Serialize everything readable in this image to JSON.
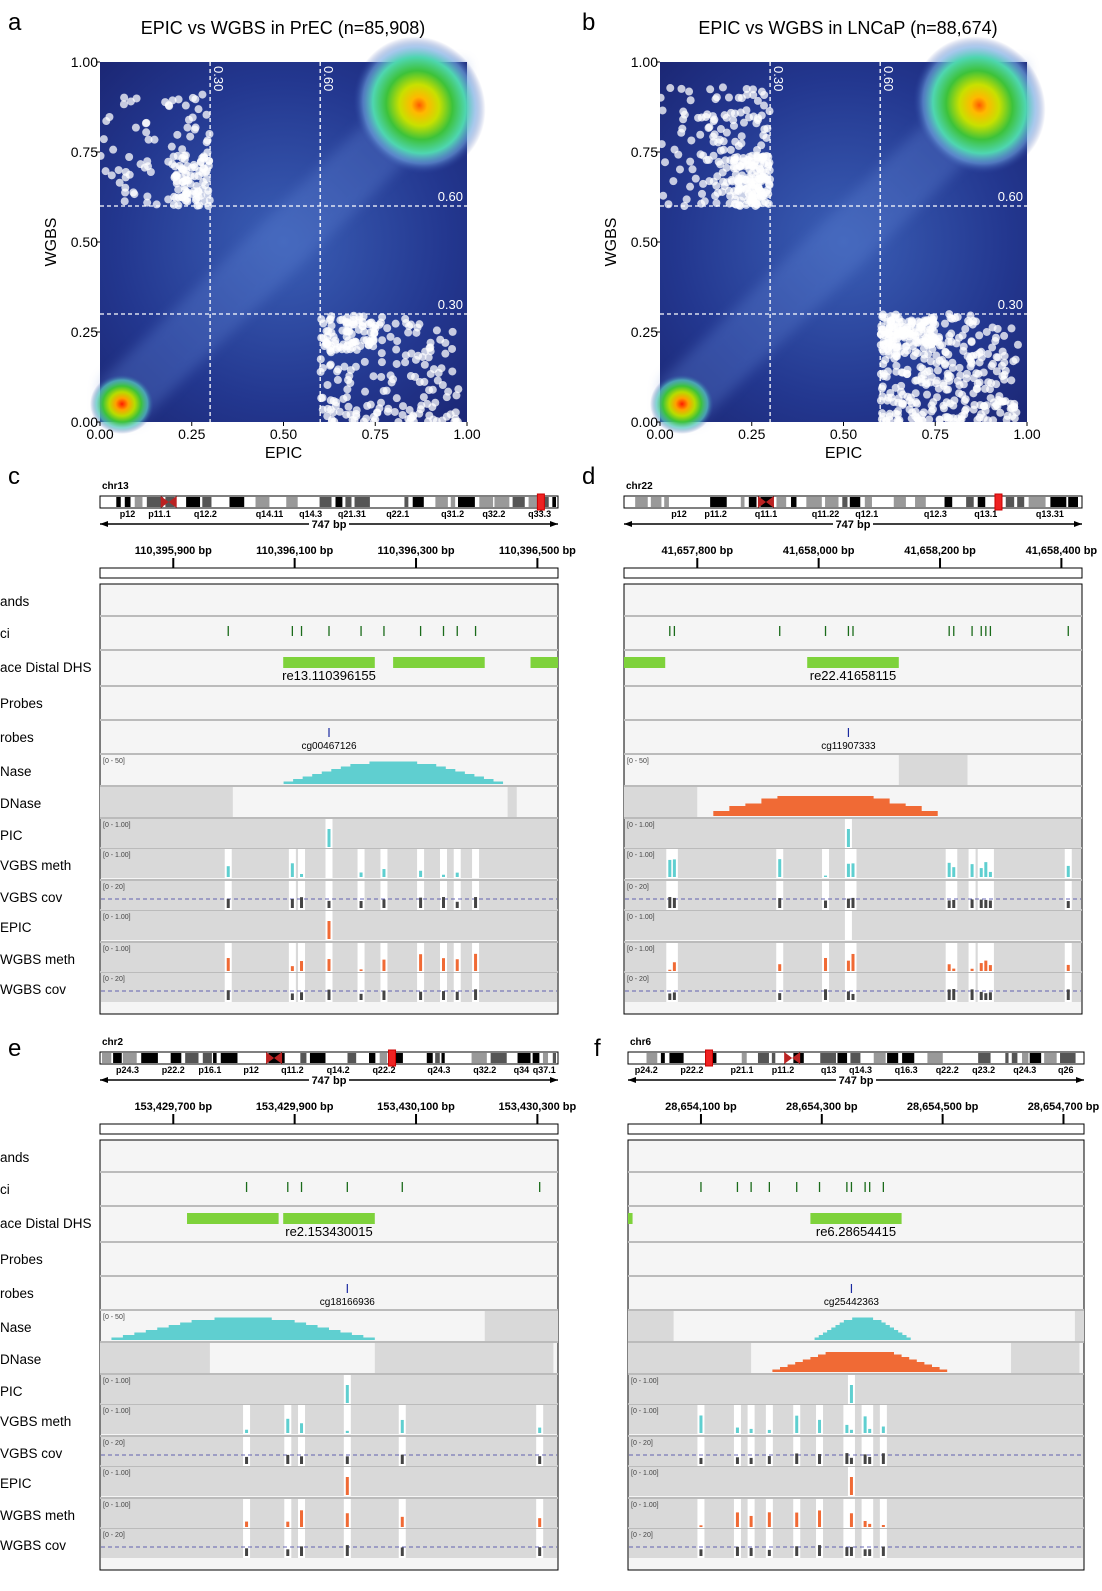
{
  "scatter_panels": [
    {
      "label": "a",
      "title": "EPIC vs WGBS in PrEC (n=85,908)",
      "xlabel": "EPIC",
      "ylabel": "WGBS",
      "xticks": [
        "0.00",
        "0.25",
        "0.50",
        "0.75",
        "1.00"
      ],
      "yticks": [
        "0.00",
        "0.25",
        "0.50",
        "0.75",
        "1.00"
      ],
      "thresholds": [
        "0.30",
        "0.60"
      ]
    },
    {
      "label": "b",
      "title": "EPIC vs WGBS in LNCaP (n=88,674)",
      "xlabel": "EPIC",
      "ylabel": "WGBS",
      "xticks": [
        "0.00",
        "0.25",
        "0.50",
        "0.75",
        "1.00"
      ],
      "yticks": [
        "0.00",
        "0.25",
        "0.50",
        "0.75",
        "1.00"
      ],
      "thresholds": [
        "0.30",
        "0.60"
      ]
    }
  ],
  "track_labels": [
    "ands",
    "ci",
    "ace Distal DHS",
    "Probes",
    "robes",
    "Nase",
    "DNase",
    "PIC",
    "VGBS meth",
    "VGBS cov",
    "EPIC",
    "WGBS meth",
    "WGBS cov"
  ],
  "scales": {
    "dnase": "[0 - 50]",
    "beta": "[0 - 1.00]",
    "cov": "[0 - 20]"
  },
  "igv_panels": [
    {
      "label": "c",
      "chrom": "chr13",
      "bands": [
        "p12",
        "p11.1",
        "q12.2",
        "q14.11",
        "q14.3",
        "q21.31",
        "q22.1",
        "q31.2",
        "q32.2",
        "q33.3"
      ],
      "span": "747 bp",
      "coords": [
        "110,395,900 bp",
        "110,396,100 bp",
        "110,396,300 bp",
        "110,396,500 bp"
      ],
      "dhs_label": "re13.110396155",
      "probe": "cg00467126"
    },
    {
      "label": "d",
      "chrom": "chr22",
      "bands": [
        "p12",
        "p11.2",
        "q11.1",
        "q11.22",
        "q12.1",
        "q12.3",
        "q13.1",
        "q13.31"
      ],
      "span": "747 bp",
      "coords": [
        "41,657,800 bp",
        "41,658,000 bp",
        "41,658,200 bp",
        "41,658,400 bp"
      ],
      "dhs_label": "re22.41658115",
      "probe": "cg11907333"
    },
    {
      "label": "e",
      "chrom": "chr2",
      "bands": [
        "p24.3",
        "p22.2",
        "p16.1",
        "p12",
        "q11.2",
        "q14.2",
        "q22.2",
        "q24.3",
        "q32.2",
        "q34",
        "q37.1"
      ],
      "span": "747 bp",
      "coords": [
        "153,429,700 bp",
        "153,429,900 bp",
        "153,430,100 bp",
        "153,430,300 bp"
      ],
      "dhs_label": "re2.153430015",
      "probe": "cg18166936"
    },
    {
      "label": "f",
      "chrom": "chr6",
      "bands": [
        "p24.2",
        "p22.2",
        "p21.1",
        "p11.2",
        "q13",
        "q14.3",
        "q16.3",
        "q22.2",
        "q23.2",
        "q24.3",
        "q26"
      ],
      "span": "747 bp",
      "coords": [
        "28,654,100 bp",
        "28,654,300 bp",
        "28,654,500 bp",
        "28,654,700 bp"
      ],
      "dhs_label": "re6.28654415",
      "probe": "cg25442363"
    }
  ],
  "colors": {
    "cyan": "#5fcfd0",
    "orange": "#f06a35",
    "green": "#7ed23b",
    "cpg": "#1a6b1a",
    "probe": "#1a2aa0",
    "grey": "#d9d9d9",
    "bg": "#f5f5f5"
  }
}
